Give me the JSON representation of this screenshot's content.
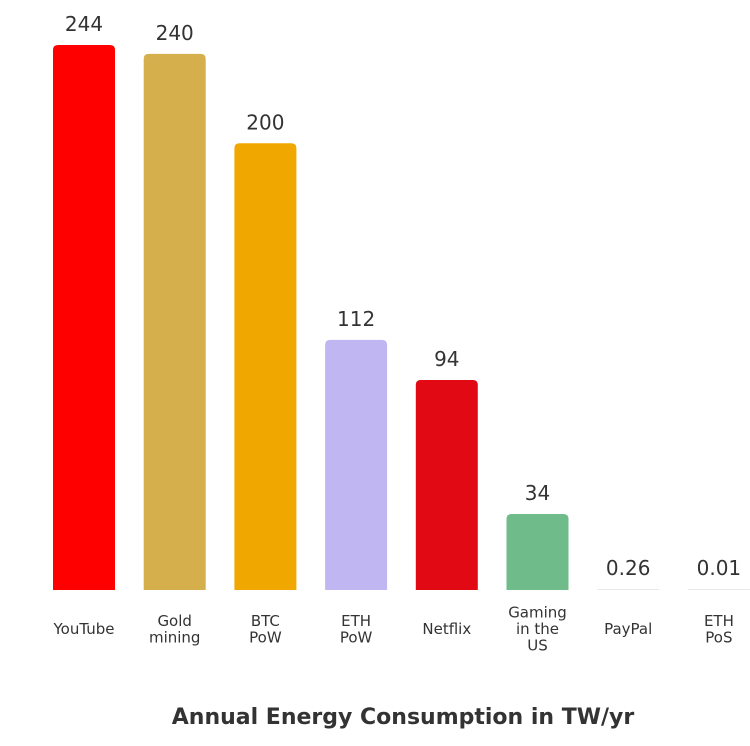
{
  "chart_data": {
    "type": "bar",
    "title": "Annual Energy Consumption in TW/yr",
    "xlabel": "",
    "ylabel": "",
    "ylim": [
      0,
      244
    ],
    "grid": false,
    "legend": "none",
    "categories": [
      [
        "YouTube"
      ],
      [
        "Gold",
        "mining"
      ],
      [
        "BTC",
        "PoW"
      ],
      [
        "ETH",
        "PoW"
      ],
      [
        "Netflix"
      ],
      [
        "Gaming",
        "in the",
        "US"
      ],
      [
        "PayPal"
      ],
      [
        "ETH",
        "PoS"
      ]
    ],
    "values": [
      244,
      240,
      200,
      112,
      94,
      34,
      0.26,
      0.01
    ],
    "value_labels": [
      "244",
      "240",
      "200",
      "112",
      "94",
      "34",
      "0.26",
      "0.01"
    ],
    "colors": [
      "#ff0000",
      "#d6af4d",
      "#f0a800",
      "#c0b7f2",
      "#e10a14",
      "#6fbb8a",
      "#e8e8e8",
      "#e8e8e8"
    ]
  }
}
